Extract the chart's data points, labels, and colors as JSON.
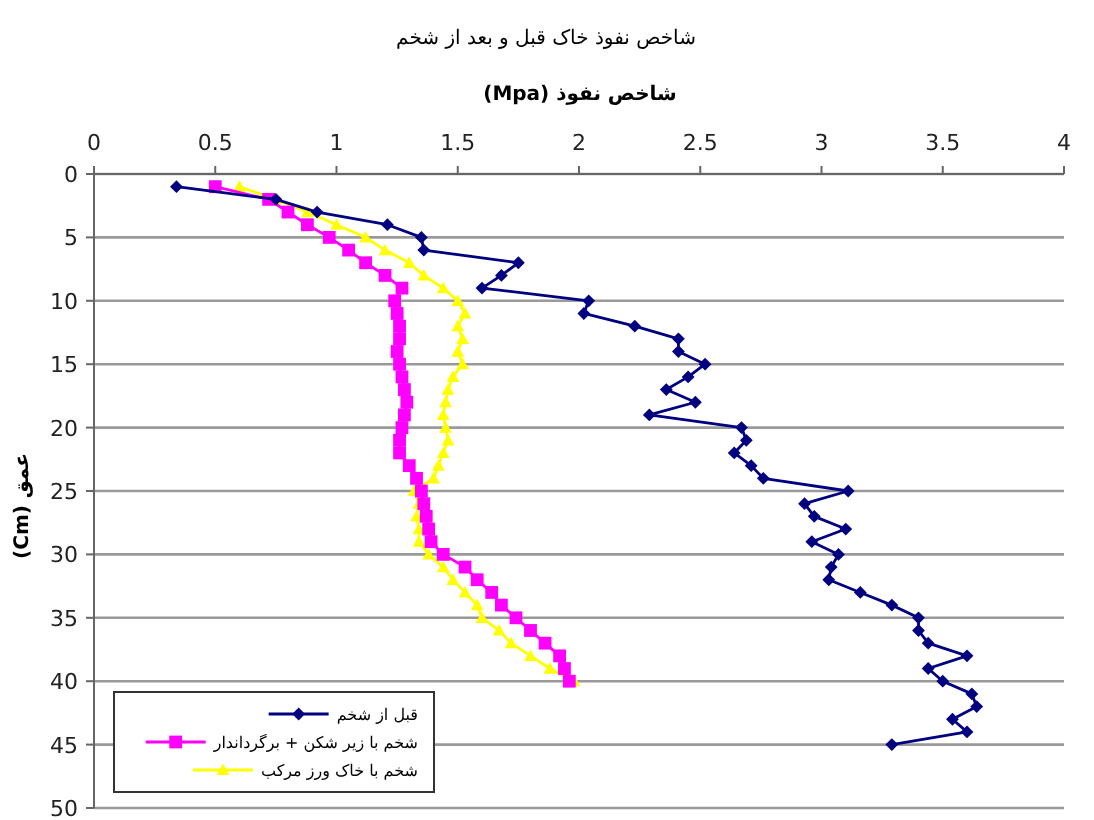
{
  "chart_data": {
    "type": "line",
    "title": "شاخص نفوذ خاک  قبل و بعد از شخم",
    "xlabel": "شاخص نفوذ (Mpa)",
    "ylabel": "عمق (Cm)",
    "xlim": [
      0,
      4
    ],
    "xticks": [
      0,
      0.5,
      1,
      1.5,
      2,
      2.5,
      3,
      3.5,
      4
    ],
    "ylim": [
      50,
      0
    ],
    "yticks": [
      0,
      5,
      10,
      15,
      20,
      25,
      30,
      35,
      40,
      45,
      50
    ],
    "grid": "y",
    "legend": "bottom left",
    "line_style": "solid",
    "series": [
      {
        "name": "قبل از شخم",
        "color": "#000080",
        "marker": "diamond",
        "x": [
          0.34,
          0.75,
          0.92,
          1.21,
          1.35,
          1.36,
          1.75,
          1.68,
          1.6,
          2.04,
          2.02,
          2.23,
          2.41,
          2.41,
          2.52,
          2.45,
          2.36,
          2.48,
          2.29,
          2.67,
          2.69,
          2.64,
          2.71,
          2.76,
          3.11,
          2.93,
          2.97,
          3.1,
          2.96,
          3.07,
          3.04,
          3.03,
          3.16,
          3.29,
          3.4,
          3.4,
          3.44,
          3.6,
          3.44,
          3.5,
          3.62,
          3.64,
          3.54,
          3.6,
          3.29
        ],
        "values": [
          1,
          2,
          3,
          4,
          5,
          6,
          7,
          8,
          9,
          10,
          11,
          12,
          13,
          14,
          15,
          16,
          17,
          18,
          19,
          20,
          21,
          22,
          23,
          24,
          25,
          26,
          27,
          28,
          29,
          30,
          31,
          32,
          33,
          34,
          35,
          36,
          37,
          38,
          39,
          40,
          41,
          42,
          43,
          44,
          45
        ]
      },
      {
        "name": "شخم  با زیر شکن + برگرداندار",
        "color": "#ff00ff",
        "marker": "square",
        "x": [
          0.5,
          0.72,
          0.8,
          0.88,
          0.97,
          1.05,
          1.12,
          1.2,
          1.27,
          1.24,
          1.25,
          1.26,
          1.26,
          1.25,
          1.26,
          1.27,
          1.28,
          1.29,
          1.28,
          1.27,
          1.26,
          1.26,
          1.3,
          1.33,
          1.35,
          1.36,
          1.37,
          1.38,
          1.39,
          1.44,
          1.53,
          1.58,
          1.64,
          1.68,
          1.74,
          1.8,
          1.86,
          1.92,
          1.94,
          1.96
        ],
        "values": [
          1,
          2,
          3,
          4,
          5,
          6,
          7,
          8,
          9,
          10,
          11,
          12,
          13,
          14,
          15,
          16,
          17,
          18,
          19,
          20,
          21,
          22,
          23,
          24,
          25,
          26,
          27,
          28,
          29,
          30,
          31,
          32,
          33,
          34,
          35,
          36,
          37,
          38,
          39,
          40
        ]
      },
      {
        "name": "شخم با خاک ورز مرکب",
        "color": "#ffff00",
        "marker": "triangle",
        "x": [
          0.6,
          0.75,
          0.88,
          1.0,
          1.12,
          1.2,
          1.3,
          1.36,
          1.44,
          1.5,
          1.53,
          1.5,
          1.52,
          1.5,
          1.52,
          1.48,
          1.46,
          1.45,
          1.44,
          1.45,
          1.46,
          1.44,
          1.42,
          1.4,
          1.32,
          1.34,
          1.33,
          1.34,
          1.34,
          1.38,
          1.44,
          1.48,
          1.53,
          1.58,
          1.6,
          1.67,
          1.72,
          1.8,
          1.88,
          1.98
        ],
        "values": [
          1,
          2,
          3,
          4,
          5,
          6,
          7,
          8,
          9,
          10,
          11,
          12,
          13,
          14,
          15,
          16,
          17,
          18,
          19,
          20,
          21,
          22,
          23,
          24,
          25,
          26,
          27,
          28,
          29,
          30,
          31,
          32,
          33,
          34,
          35,
          36,
          37,
          38,
          39,
          40
        ]
      }
    ]
  }
}
